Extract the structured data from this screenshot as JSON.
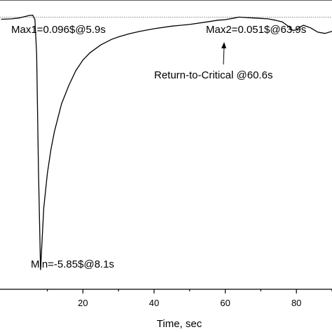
{
  "chart_data": {
    "type": "line",
    "xlabel": "Time, sec",
    "xlim": [
      -3.3,
      90
    ],
    "ylim": [
      -6.3,
      0.45
    ],
    "x_ticks": [
      20,
      40,
      60,
      80
    ],
    "grid": false,
    "reference_line_y": 0.051,
    "series": [
      {
        "x": [
          -3,
          0,
          2,
          4,
          5,
          5.9,
          6.5,
          7,
          7.5,
          8.1,
          9,
          10,
          11,
          12,
          14,
          16,
          18,
          20,
          22,
          25,
          28,
          30,
          33,
          36,
          40,
          45,
          50,
          55,
          58,
          60,
          60.6,
          62,
          63.9,
          66,
          68,
          70,
          72,
          74,
          76,
          78,
          79,
          80,
          81,
          82,
          84,
          86,
          88,
          90
        ],
        "y": [
          0.0,
          0.01,
          0.03,
          0.07,
          0.09,
          0.096,
          0.0,
          -0.8,
          -3.5,
          -5.85,
          -4.4,
          -3.6,
          -3.05,
          -2.62,
          -1.97,
          -1.55,
          -1.2,
          -0.95,
          -0.78,
          -0.6,
          -0.47,
          -0.41,
          -0.34,
          -0.28,
          -0.22,
          -0.16,
          -0.12,
          -0.06,
          -0.02,
          -0.01,
          0.0,
          0.02,
          0.051,
          0.04,
          0.03,
          0.02,
          0.01,
          -0.02,
          -0.06,
          -0.18,
          -0.26,
          -0.25,
          -0.18,
          -0.14,
          -0.2,
          -0.3,
          -0.33,
          -0.28
        ]
      }
    ],
    "annotations": [
      {
        "text": "Max1=0.096$@5.9s"
      },
      {
        "text": "Max2=0.051$@63.9s"
      },
      {
        "text": "Return-to-Critical @60.6s"
      },
      {
        "text": "Min=-5.85$@8.1s"
      }
    ]
  }
}
